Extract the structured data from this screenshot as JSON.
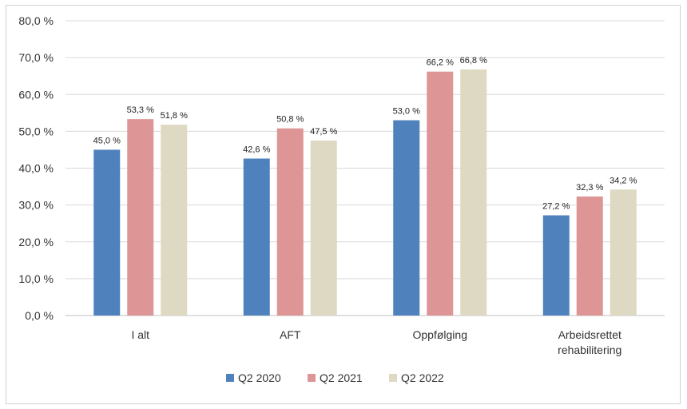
{
  "chart_data": {
    "type": "bar",
    "categories": [
      [
        "I alt"
      ],
      [
        "AFT"
      ],
      [
        "Oppfølging"
      ],
      [
        "Arbeidsrettet",
        "rehabilitering"
      ]
    ],
    "series": [
      {
        "name": "Q2 2020",
        "color": "#4f81bd",
        "values": [
          45.0,
          42.6,
          53.0,
          27.2
        ],
        "labels": [
          "45,0 %",
          "42,6 %",
          "53,0 %",
          "27,2 %"
        ]
      },
      {
        "name": "Q2 2021",
        "color": "#dd9595",
        "values": [
          53.3,
          50.8,
          66.2,
          32.3
        ],
        "labels": [
          "53,3 %",
          "50,8 %",
          "66,2 %",
          "32,3 %"
        ]
      },
      {
        "name": "Q2 2022",
        "color": "#ddd9c3",
        "values": [
          51.8,
          47.5,
          66.8,
          34.2
        ],
        "labels": [
          "51,8 %",
          "47,5 %",
          "66,8 %",
          "34,2 %"
        ]
      }
    ],
    "ylim": [
      0,
      80
    ],
    "yticks": [
      0,
      10,
      20,
      30,
      40,
      50,
      60,
      70,
      80
    ],
    "ytick_labels": [
      "0,0 %",
      "10,0 %",
      "20,0 %",
      "30,0 %",
      "40,0 %",
      "50,0 %",
      "60,0 %",
      "70,0 %",
      "80,0 %"
    ],
    "grid": true,
    "legend_position": "bottom-center",
    "title": "",
    "xlabel": "",
    "ylabel": ""
  }
}
